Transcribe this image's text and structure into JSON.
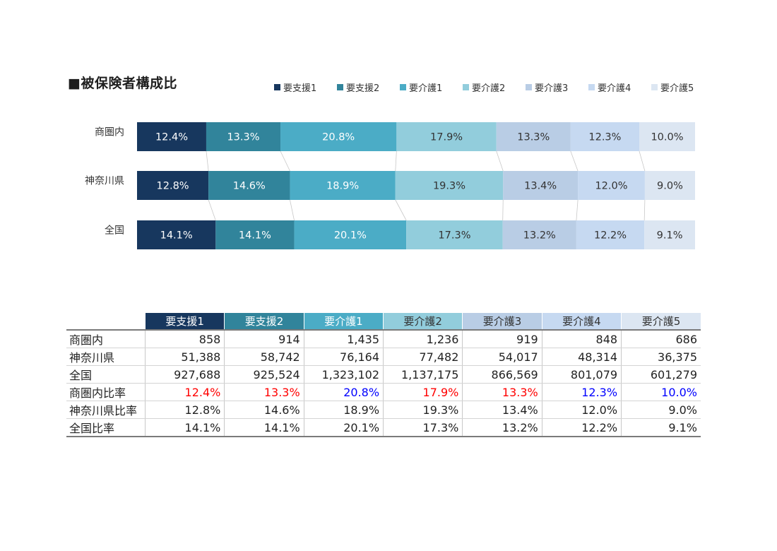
{
  "title": "■被保険者構成比",
  "colors": {
    "series": [
      "#17375e",
      "#31849b",
      "#4bacc6",
      "#92cddc",
      "#b9cde5",
      "#c6d9f1",
      "#dce6f2"
    ],
    "label_light": "#ffffff",
    "label_dark": "#333333",
    "ratio_red": "#ff0000",
    "ratio_blue": "#0000ff"
  },
  "chart_data": {
    "type": "bar",
    "orientation": "horizontal",
    "stacked": "100%",
    "categories": [
      "商圏内",
      "神奈川県",
      "全国"
    ],
    "series": [
      {
        "name": "要支援1",
        "values": [
          12.4,
          12.8,
          14.1
        ]
      },
      {
        "name": "要支援2",
        "values": [
          13.3,
          14.6,
          14.1
        ]
      },
      {
        "name": "要介護1",
        "values": [
          20.8,
          18.9,
          20.1
        ]
      },
      {
        "name": "要介護2",
        "values": [
          17.9,
          19.3,
          17.3
        ]
      },
      {
        "name": "要介護3",
        "values": [
          13.3,
          13.4,
          13.2
        ]
      },
      {
        "name": "要介護4",
        "values": [
          12.3,
          12.0,
          12.2
        ]
      },
      {
        "name": "要介護5",
        "values": [
          10.0,
          9.0,
          9.1
        ]
      }
    ],
    "data_label_suffix": "%",
    "legend_position": "top-right",
    "series_lines": true
  },
  "table": {
    "headers": [
      "要支援1",
      "要支援2",
      "要介護1",
      "要介護2",
      "要介護3",
      "要介護4",
      "要介護5"
    ],
    "rows": [
      {
        "label": "商圏内",
        "cells": [
          "858",
          "914",
          "1,435",
          "1,236",
          "919",
          "848",
          "686"
        ]
      },
      {
        "label": "神奈川県",
        "cells": [
          "51,388",
          "58,742",
          "76,164",
          "77,482",
          "54,017",
          "48,314",
          "36,375"
        ]
      },
      {
        "label": "全国",
        "cells": [
          "927,688",
          "925,524",
          "1,323,102",
          "1,137,175",
          "866,569",
          "801,079",
          "601,279"
        ]
      },
      {
        "label": "商圏内比率",
        "cells": [
          "12.4%",
          "13.3%",
          "20.8%",
          "17.9%",
          "13.3%",
          "12.3%",
          "10.0%"
        ],
        "cell_colors": [
          "red",
          "red",
          "blue",
          "red",
          "red",
          "blue",
          "blue"
        ]
      },
      {
        "label": "神奈川県比率",
        "cells": [
          "12.8%",
          "14.6%",
          "18.9%",
          "19.3%",
          "13.4%",
          "12.0%",
          "9.0%"
        ]
      },
      {
        "label": "全国比率",
        "cells": [
          "14.1%",
          "14.1%",
          "20.1%",
          "17.3%",
          "13.2%",
          "12.2%",
          "9.1%"
        ]
      }
    ]
  }
}
